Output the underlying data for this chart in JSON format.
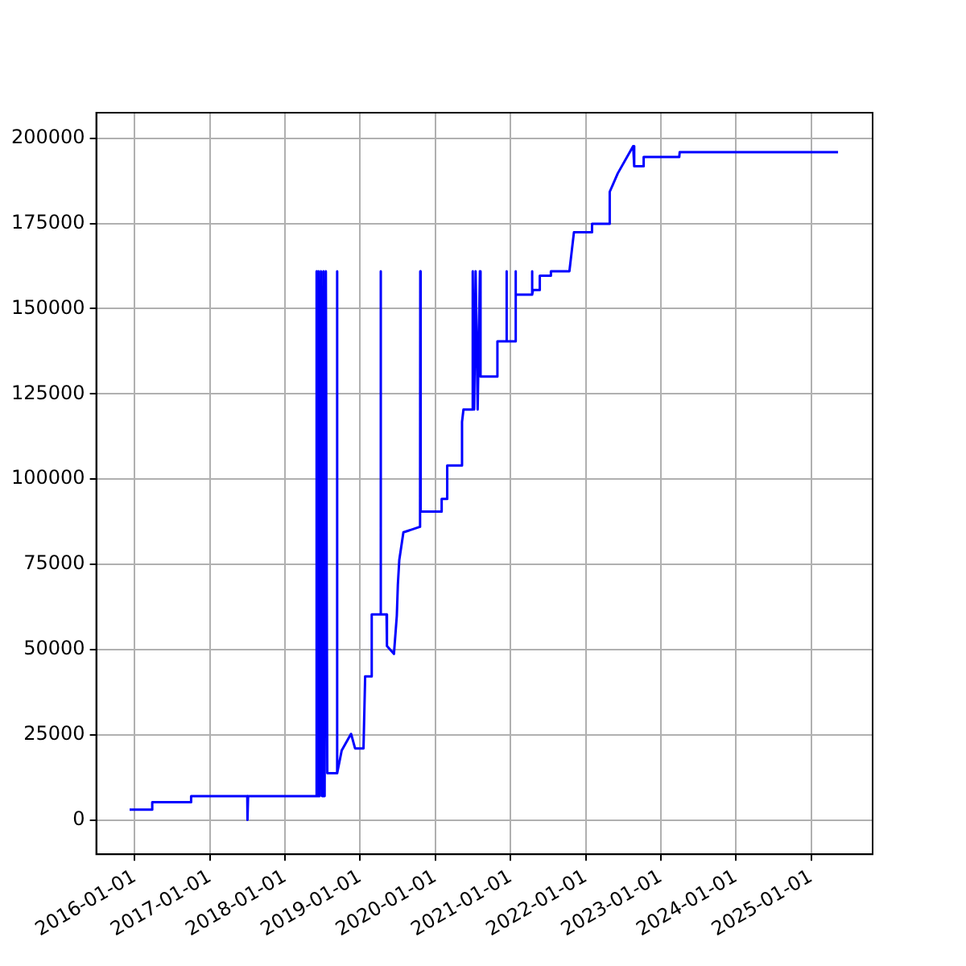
{
  "chart_data": {
    "type": "line",
    "grid": true,
    "legend": false,
    "xlim": [
      "2015-06-28",
      "2025-10-27"
    ],
    "ylim": [
      -10100,
      207500
    ],
    "xticks": [
      "2016-01-01",
      "2017-01-01",
      "2018-01-01",
      "2019-01-01",
      "2020-01-01",
      "2021-01-01",
      "2022-01-01",
      "2023-01-01",
      "2024-01-01",
      "2025-01-01"
    ],
    "yticks": [
      0,
      25000,
      50000,
      75000,
      100000,
      125000,
      150000,
      175000,
      200000
    ],
    "series": [
      {
        "color": "#0000ff",
        "x": [
          "2015-12-07",
          "2016-03-25",
          "2016-03-26",
          "2016-09-30",
          "2016-10-01",
          "2017-07-01",
          "2017-07-02",
          "2017-07-05",
          "2018-06-01",
          "2018-06-03",
          "2018-06-08",
          "2018-06-12",
          "2018-06-18",
          "2018-06-24",
          "2018-06-30",
          "2018-07-06",
          "2018-07-12",
          "2018-07-18",
          "2018-07-25",
          "2018-09-09",
          "2018-09-10",
          "2018-09-12",
          "2018-10-03",
          "2018-10-05",
          "2018-11-17",
          "2018-11-18",
          "2018-12-07",
          "2018-12-08",
          "2019-01-17",
          "2019-01-25",
          "2019-02-25",
          "2019-02-26",
          "2019-04-09",
          "2019-04-10",
          "2019-04-12",
          "2019-05-09",
          "2019-05-10",
          "2019-05-12",
          "2019-06-14",
          "2019-06-28",
          "2019-07-03",
          "2019-07-10",
          "2019-07-30",
          "2019-10-19",
          "2019-10-20",
          "2019-10-22",
          "2020-01-30",
          "2020-02-01",
          "2020-02-26",
          "2020-02-28",
          "2020-05-09",
          "2020-05-10",
          "2020-05-17",
          "2020-06-30",
          "2020-07-01",
          "2020-07-08",
          "2020-07-15",
          "2020-07-25",
          "2020-08-05",
          "2020-08-08",
          "2020-10-27",
          "2020-10-29",
          "2020-12-11",
          "2020-12-12",
          "2020-12-14",
          "2021-01-24",
          "2021-01-25",
          "2021-01-27",
          "2021-04-14",
          "2021-04-15",
          "2021-04-17",
          "2021-04-20",
          "2021-05-22",
          "2021-05-23",
          "2021-07-15",
          "2021-07-16",
          "2021-10-14",
          "2021-11-05",
          "2022-01-30",
          "2022-02-01",
          "2022-04-27",
          "2022-04-28",
          "2022-06-06",
          "2022-08-20",
          "2022-08-25",
          "2022-10-08",
          "2022-10-10",
          "2023-04-01",
          "2023-04-03",
          "2025-05-12"
        ],
        "values": [
          3000,
          3000,
          5200,
          5200,
          7000,
          7000,
          0,
          7000,
          7000,
          161000,
          7000,
          161000,
          7000,
          161000,
          7000,
          161000,
          7000,
          161000,
          13700,
          13700,
          161000,
          13700,
          20400,
          20400,
          25200,
          25200,
          21000,
          21000,
          21000,
          42100,
          42100,
          60300,
          60300,
          161000,
          60300,
          60300,
          51000,
          51000,
          48700,
          60000,
          69000,
          76300,
          84400,
          86000,
          161000,
          90500,
          90500,
          94200,
          94200,
          104000,
          104000,
          116800,
          120400,
          120400,
          161000,
          120400,
          161000,
          120400,
          161000,
          130100,
          130100,
          140400,
          140400,
          161000,
          140400,
          140400,
          161000,
          154100,
          154100,
          161000,
          154100,
          155500,
          155500,
          159700,
          159700,
          161000,
          161000,
          172400,
          172400,
          174900,
          174900,
          184300,
          189700,
          197700,
          191800,
          191800,
          194500,
          194500,
          195900,
          195900
        ]
      }
    ]
  }
}
